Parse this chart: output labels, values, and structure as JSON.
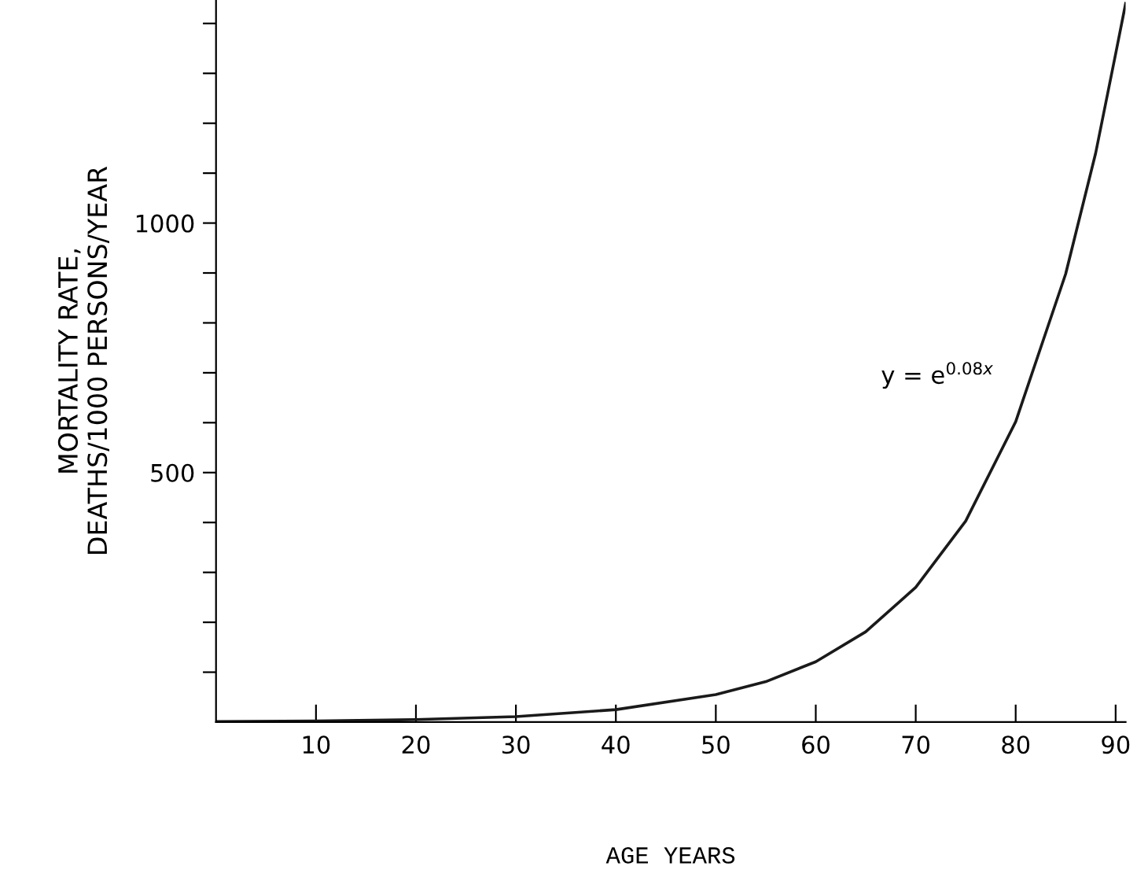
{
  "chart_data": {
    "type": "line",
    "xlabel": "AGE YEARS",
    "ylabel": "MORTALITY RATE,\nDEATHS/1000 PERSONS/YEAR",
    "series": [
      {
        "name": "y = e$^{0.08x}$",
        "color": "#1a1a1a",
        "x": [
          0,
          10,
          20,
          30,
          40,
          50,
          55,
          60,
          65,
          70,
          75,
          80,
          85,
          88,
          90,
          91
        ],
        "values": [
          1,
          2.2,
          5,
          11,
          25,
          55,
          81,
          121,
          181,
          270,
          403,
          602,
          898,
          1140,
          1339,
          1440
        ]
      }
    ],
    "xlim": [
      0,
      91
    ],
    "ylim": [
      0,
      1447
    ],
    "xticks": [
      10,
      20,
      30,
      40,
      50,
      60,
      70,
      80,
      90
    ],
    "yticks": [
      {
        "value": 100,
        "label": null
      },
      {
        "value": 200,
        "label": null
      },
      {
        "value": 300,
        "label": null
      },
      {
        "value": 400,
        "label": null
      },
      500,
      {
        "value": 600,
        "label": null
      },
      {
        "value": 700,
        "label": null
      },
      {
        "value": 800,
        "label": null
      },
      {
        "value": 900,
        "label": null
      },
      1000,
      {
        "value": 1100,
        "label": null
      },
      {
        "value": 1200,
        "label": null
      },
      {
        "value": 1300,
        "label": null
      },
      {
        "value": 1400,
        "label": null
      }
    ],
    "grid": false,
    "legend": false,
    "marker": "none",
    "line_style": "solid"
  }
}
